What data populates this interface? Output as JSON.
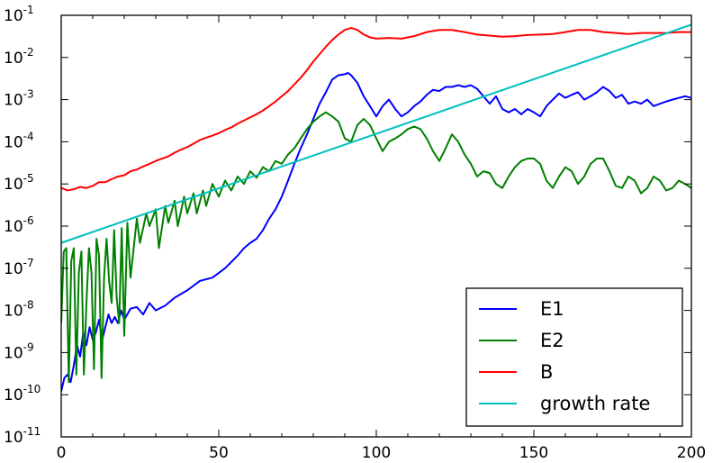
{
  "chart_data": {
    "type": "line",
    "xlabel": "",
    "ylabel": "",
    "xlim": [
      0,
      200
    ],
    "ylim": [
      1e-11,
      0.1
    ],
    "yscale": "log",
    "grid": false,
    "legend_position": "lower-right",
    "x_ticks": [
      "0",
      "50",
      "100",
      "150",
      "200"
    ],
    "y_ticks": [
      {
        "base": "10",
        "exp": "-11",
        "value": 1e-11
      },
      {
        "base": "10",
        "exp": "-10",
        "value": 1e-10
      },
      {
        "base": "10",
        "exp": "-9",
        "value": 1e-09
      },
      {
        "base": "10",
        "exp": "-8",
        "value": 1e-08
      },
      {
        "base": "10",
        "exp": "-7",
        "value": 1e-07
      },
      {
        "base": "10",
        "exp": "-6",
        "value": 1e-06
      },
      {
        "base": "10",
        "exp": "-5",
        "value": 1e-05
      },
      {
        "base": "10",
        "exp": "-4",
        "value": 0.0001
      },
      {
        "base": "10",
        "exp": "-3",
        "value": 0.001
      },
      {
        "base": "10",
        "exp": "-2",
        "value": 0.01
      },
      {
        "base": "10",
        "exp": "-1",
        "value": 0.1
      }
    ],
    "series": [
      {
        "name": "E1",
        "color": "#0000ff",
        "x": [
          0,
          1,
          2,
          3,
          4,
          5,
          6,
          7,
          8,
          9,
          10,
          11,
          12,
          13,
          14,
          15,
          16,
          17,
          18,
          19,
          20,
          22,
          24,
          26,
          28,
          30,
          33,
          36,
          40,
          44,
          48,
          52,
          56,
          58,
          60,
          62,
          64,
          66,
          68,
          70,
          72,
          74,
          76,
          78,
          80,
          82,
          84,
          86,
          88,
          90,
          91,
          92,
          94,
          96,
          98,
          100,
          102,
          104,
          106,
          108,
          110,
          112,
          114,
          116,
          118,
          120,
          122,
          124,
          126,
          128,
          130,
          132,
          134,
          136,
          138,
          140,
          142,
          144,
          146,
          148,
          150,
          152,
          154,
          156,
          158,
          160,
          162,
          164,
          166,
          168,
          170,
          172,
          174,
          176,
          178,
          180,
          182,
          184,
          186,
          188,
          190,
          192,
          194,
          196,
          198,
          200
        ],
        "y": [
          1.2e-10,
          2.5e-10,
          3e-10,
          2e-10,
          5e-10,
          1.5e-09,
          8e-10,
          3e-09,
          1.5e-09,
          4e-09,
          2e-09,
          3e-09,
          6e-09,
          2e-09,
          4e-09,
          8e-09,
          5e-09,
          7e-09,
          5e-09,
          1e-08,
          6e-09,
          1.1e-08,
          1.2e-08,
          8e-09,
          1.5e-08,
          1e-08,
          1.3e-08,
          2e-08,
          3e-08,
          5e-08,
          6e-08,
          1e-07,
          2e-07,
          3e-07,
          4e-07,
          5e-07,
          8e-07,
          1.5e-06,
          2.5e-06,
          5e-06,
          1.2e-05,
          3e-05,
          7e-05,
          0.00015,
          0.00035,
          0.0008,
          0.0015,
          0.003,
          0.0038,
          0.004,
          0.0043,
          0.0038,
          0.0025,
          0.0012,
          0.0007,
          0.0004,
          0.0007,
          0.001,
          0.0006,
          0.0004,
          0.0005,
          0.0007,
          0.0009,
          0.0013,
          0.0017,
          0.0016,
          0.002,
          0.002,
          0.0022,
          0.002,
          0.0022,
          0.0018,
          0.0012,
          0.0008,
          0.0012,
          0.0006,
          0.0005,
          0.0006,
          0.00045,
          0.0006,
          0.0005,
          0.0004,
          0.0007,
          0.001,
          0.0014,
          0.0011,
          0.0013,
          0.0015,
          0.001,
          0.0012,
          0.0015,
          0.002,
          0.0016,
          0.0011,
          0.0013,
          0.0008,
          0.0009,
          0.0008,
          0.001,
          0.0007,
          0.0008,
          0.0009,
          0.001,
          0.0011,
          0.0012,
          0.0011
        ]
      },
      {
        "name": "E2",
        "color": "#008000",
        "x": [
          0,
          0.8,
          1.6,
          2.4,
          3.2,
          4,
          4.8,
          5.6,
          6.4,
          7.2,
          8,
          8.8,
          9.6,
          10.4,
          11.2,
          12,
          12.8,
          13.6,
          14.4,
          15.2,
          16,
          16.8,
          17.6,
          18.4,
          19.2,
          20,
          21,
          22,
          24,
          25,
          27,
          28,
          30,
          31,
          33,
          34,
          36,
          37,
          39,
          40,
          42,
          43,
          45,
          46,
          48,
          50,
          52,
          54,
          56,
          58,
          60,
          62,
          64,
          66,
          68,
          70,
          72,
          74,
          76,
          78,
          80,
          82,
          84,
          86,
          88,
          90,
          92,
          94,
          96,
          98,
          100,
          102,
          104,
          106,
          108,
          110,
          112,
          114,
          116,
          118,
          120,
          122,
          124,
          126,
          128,
          130,
          132,
          134,
          136,
          138,
          140,
          142,
          144,
          146,
          148,
          150,
          152,
          154,
          156,
          158,
          160,
          162,
          164,
          166,
          168,
          170,
          172,
          174,
          176,
          178,
          180,
          182,
          184,
          186,
          188,
          190,
          192,
          194,
          196,
          198,
          200
        ],
        "y": [
          5e-09,
          2.5e-07,
          3e-07,
          2e-10,
          1.5e-07,
          3e-07,
          3e-10,
          8e-08,
          2.5e-07,
          3e-10,
          1.5e-08,
          3e-07,
          8e-08,
          4e-10,
          5e-07,
          2e-07,
          2.5e-10,
          6e-08,
          5e-07,
          5e-08,
          1.5e-08,
          8e-07,
          2e-08,
          5e-09,
          9e-07,
          2.5e-09,
          1.2e-06,
          6e-08,
          1.5e-06,
          4e-07,
          2e-06,
          1e-06,
          2.5e-06,
          3e-07,
          3e-06,
          1.2e-06,
          4e-06,
          1e-06,
          5e-06,
          2e-06,
          6e-06,
          2e-06,
          7e-06,
          3e-06,
          1e-05,
          5e-06,
          1.2e-05,
          7e-06,
          1.5e-05,
          1e-05,
          2e-05,
          1.4e-05,
          2.5e-05,
          2e-05,
          3.5e-05,
          3e-05,
          5e-05,
          7e-05,
          0.00012,
          0.0002,
          0.0003,
          0.0004,
          0.0005,
          0.0004,
          0.0003,
          0.00012,
          0.0001,
          0.00025,
          0.00035,
          0.00025,
          0.00012,
          6e-05,
          0.0001,
          0.00012,
          0.00015,
          0.0002,
          0.00023,
          0.0002,
          0.00012,
          6e-05,
          3.5e-05,
          7e-05,
          0.00015,
          0.0001,
          5e-05,
          3e-05,
          1.5e-05,
          2e-05,
          1.8e-05,
          1e-05,
          8e-06,
          1.5e-05,
          2.5e-05,
          3.5e-05,
          4e-05,
          4e-05,
          3e-05,
          1.2e-05,
          8e-06,
          1.5e-05,
          2.5e-05,
          2e-05,
          1e-05,
          1.5e-05,
          3e-05,
          4e-05,
          4e-05,
          2e-05,
          9e-06,
          8e-06,
          1.5e-05,
          1.2e-05,
          6e-06,
          8e-06,
          1.5e-05,
          1.2e-05,
          7e-06,
          8e-06,
          1.2e-05,
          1e-05,
          8e-06
        ]
      },
      {
        "name": "B",
        "color": "#ff0000",
        "x": [
          0,
          2,
          4,
          6,
          8,
          10,
          12,
          14,
          16,
          18,
          20,
          22,
          24,
          26,
          28,
          30,
          32,
          34,
          36,
          38,
          40,
          42,
          44,
          46,
          48,
          50,
          52,
          54,
          56,
          58,
          60,
          62,
          64,
          66,
          68,
          70,
          72,
          74,
          76,
          78,
          80,
          82,
          84,
          86,
          88,
          90,
          92,
          94,
          96,
          98,
          100,
          104,
          108,
          112,
          116,
          120,
          124,
          128,
          132,
          136,
          140,
          144,
          148,
          152,
          156,
          160,
          164,
          168,
          172,
          176,
          180,
          184,
          188,
          192,
          196,
          200
        ],
        "y": [
          8e-06,
          7e-06,
          7.5e-06,
          8.5e-06,
          8e-06,
          9e-06,
          1.1e-05,
          1.1e-05,
          1.3e-05,
          1.5e-05,
          1.6e-05,
          2e-05,
          2.2e-05,
          2.6e-05,
          3e-05,
          3.5e-05,
          4e-05,
          4.5e-05,
          5.5e-05,
          6.5e-05,
          7.5e-05,
          9e-05,
          0.00011,
          0.000125,
          0.00014,
          0.00016,
          0.00019,
          0.00022,
          0.00027,
          0.00032,
          0.00038,
          0.00045,
          0.00055,
          0.0007,
          0.0009,
          0.0012,
          0.0016,
          0.0023,
          0.0033,
          0.005,
          0.008,
          0.012,
          0.018,
          0.026,
          0.035,
          0.045,
          0.05,
          0.045,
          0.035,
          0.03,
          0.028,
          0.029,
          0.028,
          0.032,
          0.04,
          0.045,
          0.045,
          0.04,
          0.035,
          0.033,
          0.031,
          0.032,
          0.034,
          0.035,
          0.036,
          0.04,
          0.045,
          0.045,
          0.04,
          0.038,
          0.036,
          0.038,
          0.038,
          0.038,
          0.04,
          0.04
        ]
      },
      {
        "name": "growth rate",
        "color": "#00bfbf",
        "x": [
          0,
          200
        ],
        "y": [
          4e-07,
          0.06
        ]
      }
    ]
  }
}
